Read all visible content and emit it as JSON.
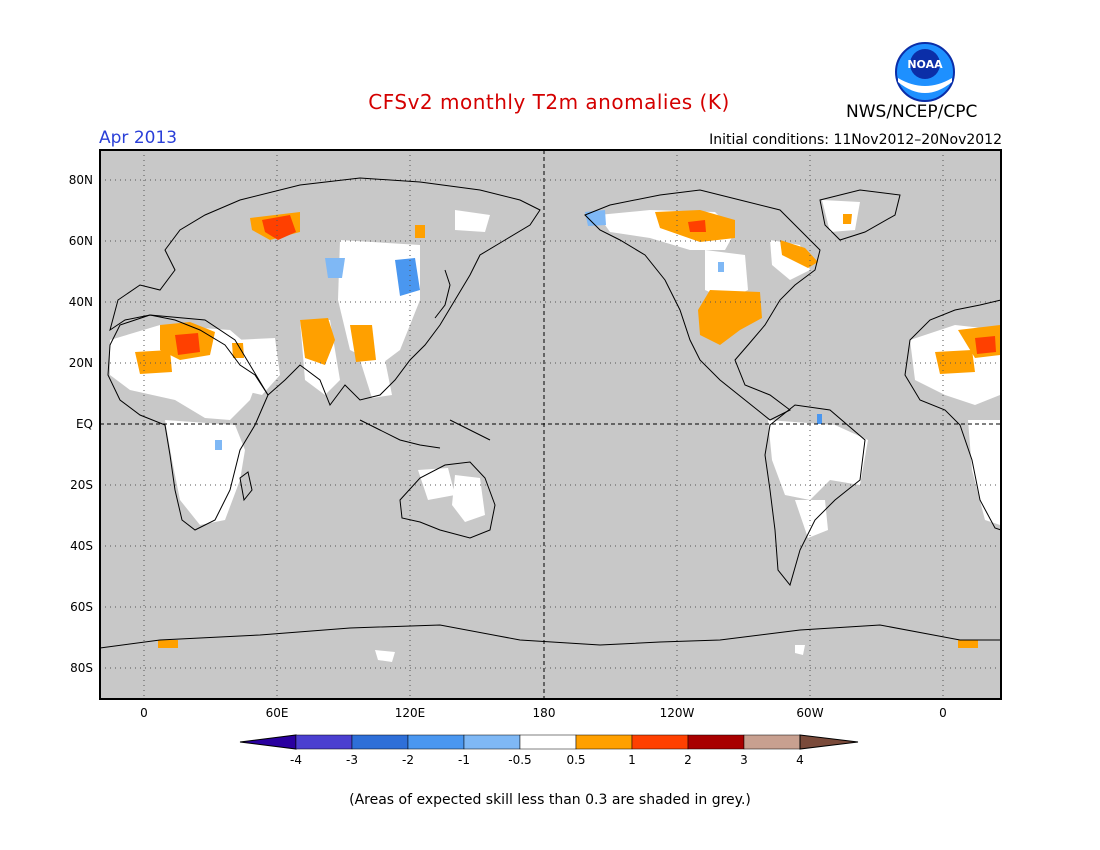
{
  "title": "CFSv2 monthly T2m anomalies (K)",
  "valid_month": "Apr 2013",
  "initial_conditions": "Initial conditions: 11Nov2012–20Nov2012",
  "agency": "NWS/NCEP/CPC",
  "logo_text": "NOAA",
  "footnote": "(Areas of expected skill less than 0.3 are shaded in grey.)",
  "map": {
    "lat_ticks": [
      "80N",
      "60N",
      "40N",
      "20N",
      "EQ",
      "20S",
      "40S",
      "60S",
      "80S"
    ],
    "lon_ticks": [
      "0",
      "60E",
      "120E",
      "180",
      "120W",
      "60W",
      "0"
    ],
    "background_color": "#c8c8c8",
    "grid": "dotted"
  },
  "colorbar": {
    "labels": [
      "-4",
      "-3",
      "-2",
      "-1",
      "-0.5",
      "0.5",
      "1",
      "2",
      "3",
      "4"
    ],
    "colors": [
      "#2a00a0",
      "#4b3fd0",
      "#2e6fd8",
      "#4a97f0",
      "#7fb8f5",
      "#ffffff",
      "#ffa000",
      "#ff4000",
      "#a80000",
      "#c8a090",
      "#7a4a3a"
    ]
  },
  "legend_colors": {
    "warm_1": "#ffa000",
    "warm_2": "#ff4000",
    "warm_3": "#a80000",
    "cool_1": "#7fb8f5",
    "cool_2": "#4a97f0",
    "neutral": "#ffffff"
  }
}
